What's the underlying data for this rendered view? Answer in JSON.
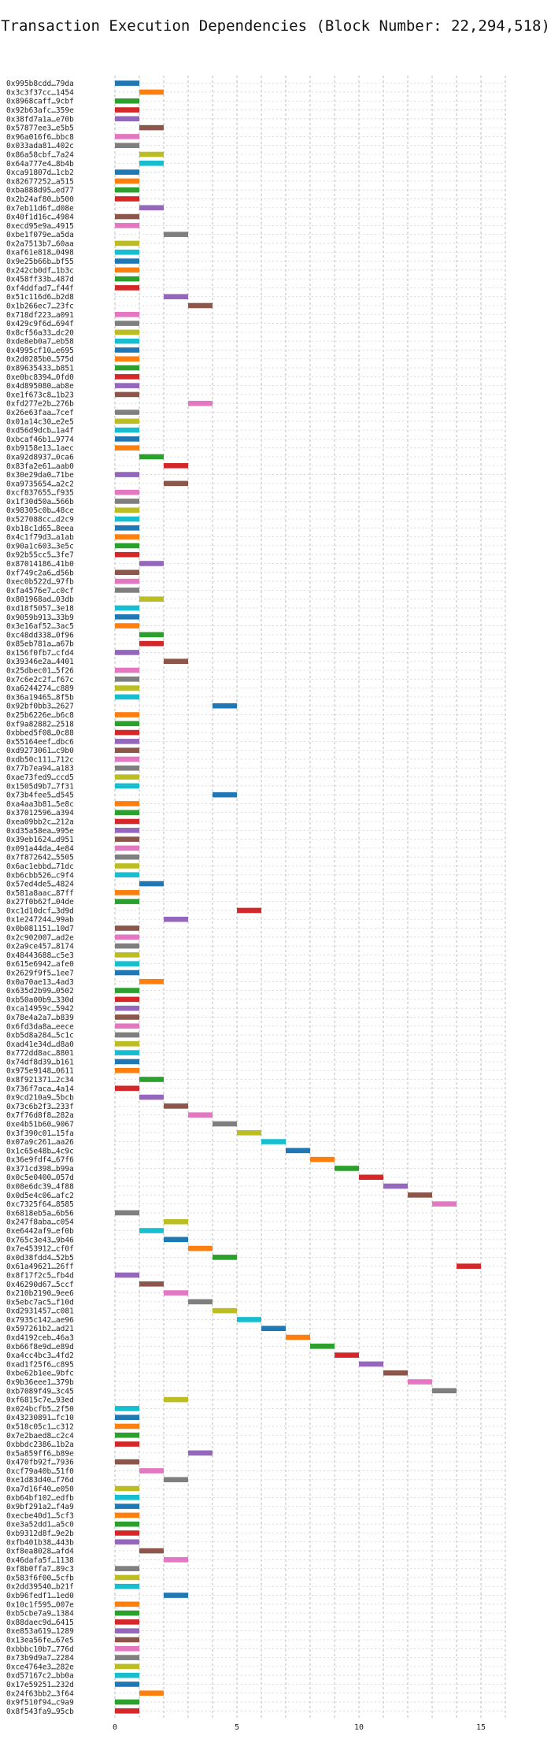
{
  "chart_data": {
    "type": "bar",
    "orientation": "horizontal",
    "title": "Transaction Execution Dependencies (Block Number: 22,294,518)",
    "xlabel": "",
    "ylabel": "",
    "xlim": [
      0,
      16
    ],
    "xticks": [
      0,
      5,
      10,
      15
    ],
    "grid": "vertical dashed",
    "bar_duration": 1,
    "transactions": [
      "0x995b8cdd…79da",
      "0x3c3f37cc…1454",
      "0x8968caff…9cbf",
      "0x92b63afc…359e",
      "0x38fd7a1a…e70b",
      "0x57877ee3…e5b5",
      "0x96a016f6…bbc8",
      "0x033ada81…402c",
      "0x86a58cbf…7a24",
      "0x64a777e4…8b4b",
      "0xca91807d…1cb2",
      "0x82677252…a515",
      "0xba888d95…ed77",
      "0x2b24af80…b500",
      "0x7eb11d6f…d08e",
      "0x40f1d16c…4984",
      "0xecd95e9a…4915",
      "0xbe1f079e…a5da",
      "0x2a7513b7…60aa",
      "0xaf61e818…0498",
      "0x9e25b66b…bf55",
      "0x242cb0df…1b3c",
      "0x458ff33b…487d",
      "0xf4ddfad7…f44f",
      "0x51c116d6…b2d8",
      "0x1b266ec7…23fc",
      "0x718df223…a091",
      "0x429c9f6d…694f",
      "0x8cf56a33…dc20",
      "0xde8eb0a7…eb58",
      "0x4995cf10…e695",
      "0x2d0285b0…575d",
      "0x89635433…b851",
      "0xe0bc8394…0fd0",
      "0x4d895080…ab8e",
      "0xe1f673c8…1b23",
      "0xfd277e2b…276b",
      "0x26e63faa…7cef",
      "0x01a14c30…e2e5",
      "0xd56d9dcb…1a4f",
      "0xbcaf46b1…9774",
      "0xb9158e13…1aec",
      "0xa92d8937…0ca6",
      "0x83fa2e61…aab0",
      "0x30e29da0…71be",
      "0xa9735654…a2c2",
      "0xcf837655…f935",
      "0x1f30d50a…566b",
      "0x98305c0b…48ce",
      "0x527088cc…d2c9",
      "0xb18c1d65…8eea",
      "0x4c1f79d3…a1ab",
      "0x90a1c603…3e5c",
      "0x92b55cc5…3fe7",
      "0x87014186…41b0",
      "0xf749c2a6…d56b",
      "0xec0b522d…97fb",
      "0xfa4576e7…c0cf",
      "0x801968ad…03db",
      "0xd18f5057…3e18",
      "0x9059b913…33b9",
      "0x3e16af52…3ac5",
      "0xc48dd338…0f96",
      "0x85eb781a…a67b",
      "0x156f0fb7…cfd4",
      "0x39346e2a…4401",
      "0x25dbec01…5f26",
      "0x7c6e2c2f…f67c",
      "0xa6244274…c889",
      "0x36a19465…8f5b",
      "0x92bf0bb3…2627",
      "0x25b6226e…b6c8",
      "0xf9a82882…2518",
      "0xbbed5f08…0c88",
      "0x55164eef…dbc6",
      "0xd9273061…c9b0",
      "0xdb50c111…712c",
      "0x77b7ea94…a183",
      "0xae73fed9…ccd5",
      "0x1505d9b7…7f31",
      "0x73b4fee5…d545",
      "0xa4aa3b81…5e8c",
      "0x37012596…a394",
      "0xea09bb2c…212a",
      "0xd35a58ea…995e",
      "0x39eb1624…d951",
      "0x091a44da…4e84",
      "0x7f872642…5505",
      "0x6ac1ebbd…71dc",
      "0xb6cbb526…c9f4",
      "0x57ed4de5…4824",
      "0x581a8aac…87ff",
      "0x27f0b62f…04de",
      "0xc1d10dcf…3d9d",
      "0x1e247244…99ab",
      "0x0b081151…10d7",
      "0x2c902007…ad2e",
      "0x2a9ce457…8174",
      "0x48443688…c5e3",
      "0x615e6942…afe0",
      "0x2629f9f5…1ee7",
      "0x0a70ae13…4ad3",
      "0x635d2b99…0502",
      "0xb50a00b9…330d",
      "0xca14959c…5942",
      "0x78e4a2a7…b839",
      "0x6fd3da8a…eece",
      "0xb5d8a284…5c1c",
      "0xad41e34d…d8a0",
      "0x772dd8ac…8801",
      "0x74df8d39…b161",
      "0x975e9148…0611",
      "0x8f921371…2c34",
      "0x736f7aca…4a14",
      "0x9cd210a9…5bcb",
      "0x73c6b2f3…233f",
      "0x7f76d8f8…282a",
      "0xe4b51b60…9067",
      "0x3f390c01…15fa",
      "0x07a9c261…aa26",
      "0x1c65e48b…4c9c",
      "0x36e9fdf4…67f6",
      "0x371cd398…b99a",
      "0x0c5e0400…057d",
      "0x08e6dc39…4f88",
      "0x0d5e4c06…afc2",
      "0xc7325f64…8585",
      "0x6818eb5a…6b56",
      "0x247f8aba…c054",
      "0xe6442af9…ef0b",
      "0x765c3e43…9b46",
      "0x7e453912…cf0f",
      "0x0d38fdd4…52b5",
      "0x61a49621…26ff",
      "0x8f17f2c5…fb4d",
      "0x46290d67…5ccf",
      "0x210b2190…9ee6",
      "0x5ebc7ac5…f10d",
      "0xd2931457…c081",
      "0x7935c142…ae96",
      "0x597261b2…ad21",
      "0xd4192ceb…46a3",
      "0xb66f8e9d…e89d",
      "0xa4cc4bc3…4fd2",
      "0xad1f25f6…c895",
      "0xbe62b1ee…9bfc",
      "0x9b36eee1…379b",
      "0xb7089f49…3c45",
      "0xf6815c7e…93ed",
      "0x024bcfb5…2f50",
      "0x43230891…fc10",
      "0x518c05c1…c312",
      "0x7e2baed8…c2c4",
      "0xbbdc2386…1b2a",
      "0x5a859ff6…b89e",
      "0x470fb92f…7936",
      "0xcf79a40b…51f0",
      "0xe1d83d40…f76d",
      "0xa7d16f40…e050",
      "0xb64bf102…edfb",
      "0x9bf291a2…f4a9",
      "0xecbe40d1…5cf3",
      "0xe3a52dd1…a5c0",
      "0xb9312d8f…9e2b",
      "0xfb401b38…443b",
      "0xf8ea8028…afd4",
      "0x46dafa5f…1138",
      "0xf8b0ffa7…89c3",
      "0x583f6f00…5cfb",
      "0x2dd39540…b21f",
      "0xb96fedf1…1ed0",
      "0x10c1f595…007e",
      "0xb5cbe7a9…1384",
      "0x88daec9d…6415",
      "0xe853a619…1289",
      "0x13ea56fe…67e5",
      "0xbbbc10b7…776d",
      "0x73b9d9a7…2284",
      "0xce4764e3…282e",
      "0xd57167c2…bb0a",
      "0x17e59251…232d",
      "0x24f63bb2…3f64",
      "0x9f510f94…c9a9",
      "0x8f543fa9…95cb"
    ],
    "start_times": [
      0,
      1,
      0,
      0,
      0,
      1,
      0,
      0,
      1,
      1,
      0,
      0,
      0,
      0,
      1,
      0,
      0,
      2,
      0,
      0,
      0,
      0,
      0,
      0,
      2,
      3,
      0,
      0,
      0,
      0,
      0,
      0,
      0,
      0,
      0,
      0,
      3,
      0,
      0,
      0,
      0,
      0,
      1,
      2,
      0,
      2,
      0,
      0,
      0,
      0,
      0,
      0,
      0,
      0,
      1,
      0,
      0,
      0,
      1,
      0,
      0,
      0,
      1,
      1,
      0,
      2,
      0,
      0,
      0,
      0,
      4,
      0,
      0,
      0,
      0,
      0,
      0,
      0,
      0,
      0,
      4,
      0,
      0,
      0,
      0,
      0,
      0,
      0,
      0,
      0,
      1,
      0,
      0,
      5,
      2,
      0,
      0,
      0,
      0,
      0,
      0,
      1,
      0,
      0,
      0,
      0,
      0,
      0,
      0,
      0,
      0,
      0,
      1,
      0,
      1,
      2,
      3,
      4,
      5,
      6,
      7,
      8,
      9,
      10,
      11,
      12,
      13,
      0,
      2,
      1,
      2,
      3,
      4,
      14,
      0,
      1,
      2,
      3,
      4,
      5,
      6,
      7,
      8,
      9,
      10,
      11,
      12,
      13,
      2,
      0,
      0,
      0,
      0,
      0,
      3,
      0,
      1,
      2,
      0,
      0,
      0,
      0,
      0,
      0,
      0,
      1,
      2,
      0,
      0,
      0,
      2,
      0,
      0,
      0,
      0,
      0,
      0,
      0,
      0,
      0,
      0,
      1,
      0,
      0
    ],
    "colors": [
      "#1f77b4",
      "#ff7f0e",
      "#2ca02c",
      "#d62728",
      "#9467bd",
      "#8c564b",
      "#e377c2",
      "#7f7f7f",
      "#bcbd22",
      "#17becf"
    ]
  }
}
